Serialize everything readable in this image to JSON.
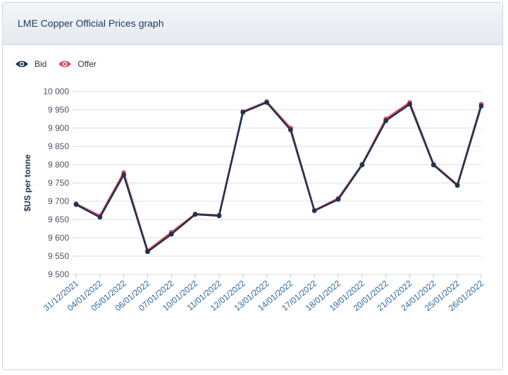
{
  "card": {
    "title": "LME Copper Official Prices graph"
  },
  "legend": [
    {
      "label": "Bid",
      "icon": "eye-icon",
      "color": "#1e3550"
    },
    {
      "label": "Offer",
      "icon": "eye-icon",
      "color": "#e0485e"
    }
  ],
  "chart_data": {
    "type": "line",
    "ylabel": "$US per tonne",
    "ylim": [
      9500,
      10000
    ],
    "yticks": [
      9500,
      9550,
      9600,
      9650,
      9700,
      9750,
      9800,
      9850,
      9900,
      9950,
      10000
    ],
    "ytick_labels": [
      "9 500",
      "9 550",
      "9 600",
      "9 650",
      "9 700",
      "9 750",
      "9 800",
      "9 850",
      "9 900",
      "9 950",
      "10 000"
    ],
    "grid": true,
    "legend_position": "top-left",
    "categories": [
      "31/12/2021",
      "04/01/2022",
      "05/01/2022",
      "06/01/2022",
      "07/01/2022",
      "10/01/2022",
      "11/01/2022",
      "12/01/2022",
      "13/01/2022",
      "14/01/2022",
      "17/01/2022",
      "18/01/2022",
      "19/01/2022",
      "20/01/2022",
      "21/01/2022",
      "24/01/2022",
      "25/01/2022",
      "26/01/2022"
    ],
    "series": [
      {
        "name": "Offer",
        "color": "#e0485e",
        "values": [
          9693,
          9660,
          9778,
          9565,
          9615,
          9665,
          9662,
          9945,
          9972,
          9900,
          9675,
          9708,
          9801,
          9925,
          9970,
          9801,
          9745,
          9965
        ]
      },
      {
        "name": "Bid",
        "color": "#1e3550",
        "values": [
          9691,
          9656,
          9772,
          9562,
          9610,
          9664,
          9660,
          9943,
          9970,
          9895,
          9674,
          9705,
          9799,
          9920,
          9965,
          9799,
          9743,
          9960
        ]
      }
    ]
  }
}
